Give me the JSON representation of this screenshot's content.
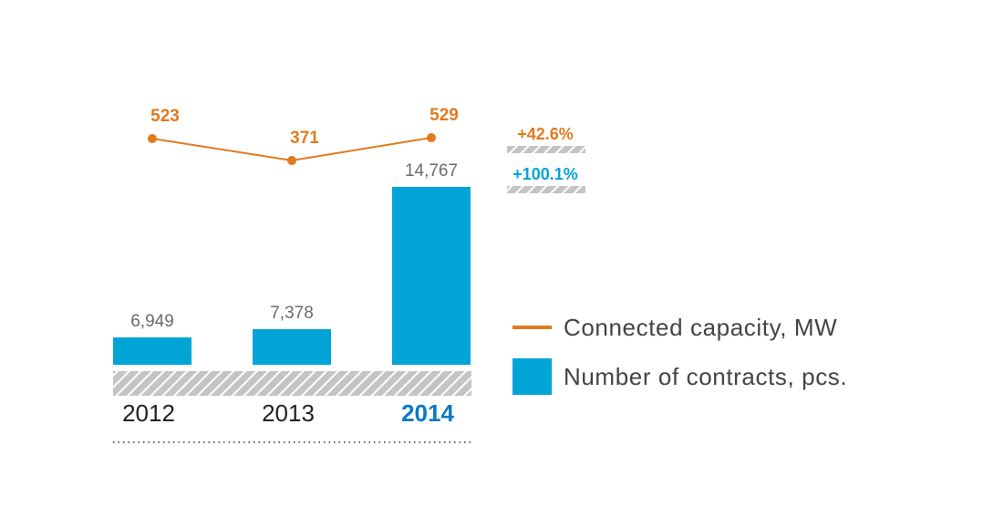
{
  "chart_data": {
    "type": "bar+line",
    "categories": [
      "2012",
      "2013",
      "2014"
    ],
    "highlight_category": "2014",
    "series": [
      {
        "name": "Number of contracts, pcs.",
        "type": "bar",
        "values": [
          6949,
          7378,
          14767
        ],
        "labels": [
          "6,949",
          "7,378",
          "14,767"
        ],
        "color": "#00a5d6"
      },
      {
        "name": "Connected capacity, MW",
        "type": "line",
        "values": [
          523,
          371,
          529
        ],
        "labels": [
          "523",
          "371",
          "529"
        ],
        "color": "#e07b1f"
      }
    ],
    "bar_ylim": [
      5530,
      15000
    ],
    "changes": [
      {
        "label": "+42.6%",
        "series": "Connected capacity, MW",
        "color": "#e07b1f"
      },
      {
        "label": "+100.1%",
        "series": "Number of contracts, pcs.",
        "color": "#00a5d6"
      }
    ],
    "legend": [
      {
        "label": "Connected capacity, MW",
        "shape": "line",
        "color": "#e07b1f"
      },
      {
        "label": "Number of contracts, pcs.",
        "shape": "square",
        "color": "#00a5d6"
      }
    ],
    "legend_placement": "right",
    "grid": false
  }
}
